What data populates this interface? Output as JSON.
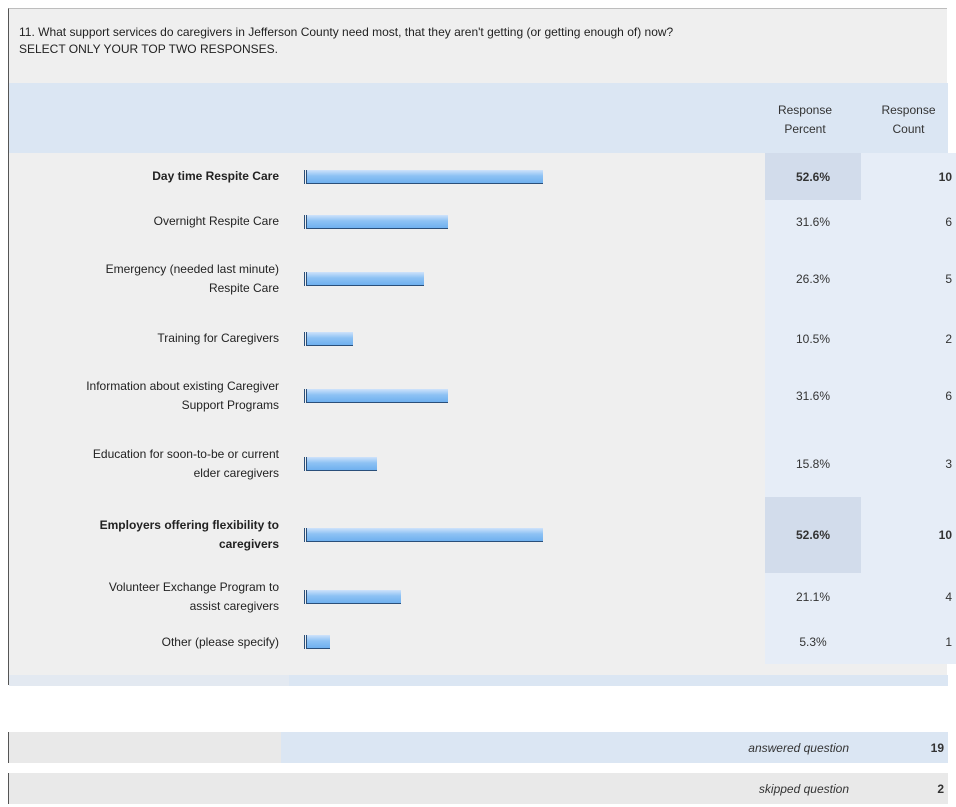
{
  "question": {
    "line1": "11. What support services do caregivers in Jefferson County need most, that they aren't getting (or getting enough of) now?",
    "line2": "SELECT ONLY YOUR TOP TWO RESPONSES."
  },
  "columns": {
    "percent_line1": "Response",
    "percent_line2": "Percent",
    "count_line1": "Response",
    "count_line2": "Count"
  },
  "chart_data": {
    "type": "bar",
    "orientation": "horizontal",
    "categories": [
      "Day time Respite Care",
      "Overnight Respite Care",
      "Emergency (needed last minute) Respite Care",
      "Training for Caregivers",
      "Information about existing Caregiver Support Programs",
      "Education for soon-to-be or current elder caregivers",
      "Employers offering flexibility to caregivers",
      "Volunteer Exchange Program to assist caregivers",
      "Other (please specify)"
    ],
    "percent_labels": [
      "52.6%",
      "31.6%",
      "26.3%",
      "10.5%",
      "31.6%",
      "15.8%",
      "52.6%",
      "21.1%",
      "5.3%"
    ],
    "values": [
      52.6,
      31.6,
      26.3,
      10.5,
      31.6,
      15.8,
      52.6,
      21.1,
      5.3
    ],
    "counts": [
      10,
      6,
      5,
      2,
      6,
      3,
      10,
      4,
      1
    ],
    "highlighted": [
      true,
      false,
      false,
      false,
      false,
      false,
      true,
      false,
      false
    ],
    "xlim": [
      0,
      100
    ]
  },
  "rows_text": [
    {
      "label_lines": [
        "Day time Respite Care"
      ],
      "percent": "52.6%",
      "count": "10"
    },
    {
      "label_lines": [
        "Overnight Respite Care"
      ],
      "percent": "31.6%",
      "count": "6"
    },
    {
      "label_lines": [
        "Emergency (needed last minute)",
        "Respite Care"
      ],
      "percent": "26.3%",
      "count": "5"
    },
    {
      "label_lines": [
        "Training for Caregivers"
      ],
      "percent": "10.5%",
      "count": "2"
    },
    {
      "label_lines": [
        "Information about existing Caregiver",
        "Support Programs"
      ],
      "percent": "31.6%",
      "count": "6"
    },
    {
      "label_lines": [
        "Education for soon-to-be or current",
        "elder caregivers"
      ],
      "percent": "15.8%",
      "count": "3"
    },
    {
      "label_lines": [
        "Employers offering flexibility to",
        "caregivers"
      ],
      "percent": "52.6%",
      "count": "10"
    },
    {
      "label_lines": [
        "Volunteer Exchange Program to",
        "assist caregivers"
      ],
      "percent": "21.1%",
      "count": "4"
    },
    {
      "label_lines": [
        "Other (please specify)"
      ],
      "percent": "5.3%",
      "count": "1"
    }
  ],
  "summary": {
    "answered_label": "answered question",
    "answered_value": "19",
    "skipped_label": "skipped question",
    "skipped_value": "2"
  },
  "colors": {
    "bar_fill": "#8ec2f4",
    "bar_outline": "#2a4f7a",
    "header_band": "#dbe6f3",
    "highlight_cell": "#d2dceb"
  }
}
